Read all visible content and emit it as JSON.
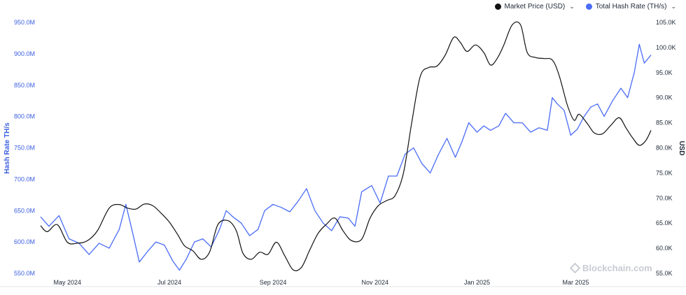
{
  "legend": {
    "price_label": "Market Price (USD)",
    "hash_label": "Total Hash Rate (TH/s)"
  },
  "watermark": "Blockchain.com",
  "colors": {
    "hash": "#4a6cf7",
    "price": "#111111",
    "grid": "#eceef2"
  },
  "chart_data": {
    "type": "line",
    "xlabel": "",
    "ylabel_left": "Hash Rate TH/s",
    "ylabel_right": "USD",
    "x_range": [
      "2024-04-15",
      "2025-04-15"
    ],
    "x_ticks": [
      {
        "date": "2024-05-01",
        "label": "May 2024"
      },
      {
        "date": "2024-07-01",
        "label": "Jul 2024"
      },
      {
        "date": "2024-09-01",
        "label": "Sep 2024"
      },
      {
        "date": "2024-11-01",
        "label": "Nov 2024"
      },
      {
        "date": "2025-01-01",
        "label": "Jan 2025"
      },
      {
        "date": "2025-03-01",
        "label": "Mar 2025"
      }
    ],
    "ylim_left": [
      550000000,
      950000000
    ],
    "yticks_left": [
      "550.0M",
      "600.0M",
      "650.0M",
      "700.0M",
      "750.0M",
      "800.0M",
      "850.0M",
      "900.0M",
      "950.0M"
    ],
    "ylim_right": [
      55000,
      105000
    ],
    "yticks_right": [
      "55.0K",
      "60.0K",
      "65.0K",
      "70.0K",
      "75.0K",
      "80.0K",
      "85.0K",
      "90.0K",
      "95.0K",
      "100.0K",
      "105.0K"
    ],
    "series": [
      {
        "name": "Total Hash Rate (TH/s)",
        "axis": "left",
        "color": "#4a6cf7",
        "points": [
          [
            "2024-04-15",
            640000000
          ],
          [
            "2024-04-20",
            625000000
          ],
          [
            "2024-04-26",
            642000000
          ],
          [
            "2024-05-02",
            605000000
          ],
          [
            "2024-05-08",
            598000000
          ],
          [
            "2024-05-14",
            580000000
          ],
          [
            "2024-05-20",
            598000000
          ],
          [
            "2024-05-26",
            590000000
          ],
          [
            "2024-06-01",
            620000000
          ],
          [
            "2024-06-05",
            660000000
          ],
          [
            "2024-06-09",
            615000000
          ],
          [
            "2024-06-13",
            568000000
          ],
          [
            "2024-06-18",
            585000000
          ],
          [
            "2024-06-23",
            600000000
          ],
          [
            "2024-06-28",
            595000000
          ],
          [
            "2024-07-03",
            570000000
          ],
          [
            "2024-07-07",
            555000000
          ],
          [
            "2024-07-11",
            572000000
          ],
          [
            "2024-07-16",
            600000000
          ],
          [
            "2024-07-21",
            605000000
          ],
          [
            "2024-07-26",
            592000000
          ],
          [
            "2024-07-31",
            620000000
          ],
          [
            "2024-08-04",
            650000000
          ],
          [
            "2024-08-08",
            640000000
          ],
          [
            "2024-08-13",
            630000000
          ],
          [
            "2024-08-18",
            610000000
          ],
          [
            "2024-08-23",
            620000000
          ],
          [
            "2024-08-27",
            650000000
          ],
          [
            "2024-09-01",
            660000000
          ],
          [
            "2024-09-06",
            655000000
          ],
          [
            "2024-09-11",
            648000000
          ],
          [
            "2024-09-16",
            665000000
          ],
          [
            "2024-09-21",
            685000000
          ],
          [
            "2024-09-26",
            650000000
          ],
          [
            "2024-10-01",
            630000000
          ],
          [
            "2024-10-06",
            618000000
          ],
          [
            "2024-10-11",
            640000000
          ],
          [
            "2024-10-16",
            638000000
          ],
          [
            "2024-10-20",
            625000000
          ],
          [
            "2024-10-24",
            680000000
          ],
          [
            "2024-10-30",
            690000000
          ],
          [
            "2024-11-04",
            662000000
          ],
          [
            "2024-11-09",
            705000000
          ],
          [
            "2024-11-14",
            705000000
          ],
          [
            "2024-11-19",
            740000000
          ],
          [
            "2024-11-24",
            750000000
          ],
          [
            "2024-11-29",
            725000000
          ],
          [
            "2024-12-04",
            710000000
          ],
          [
            "2024-12-09",
            740000000
          ],
          [
            "2024-12-14",
            765000000
          ],
          [
            "2024-12-19",
            735000000
          ],
          [
            "2024-12-23",
            760000000
          ],
          [
            "2024-12-27",
            790000000
          ],
          [
            "2025-01-01",
            775000000
          ],
          [
            "2025-01-05",
            785000000
          ],
          [
            "2025-01-09",
            778000000
          ],
          [
            "2025-01-14",
            785000000
          ],
          [
            "2025-01-18",
            805000000
          ],
          [
            "2025-01-23",
            790000000
          ],
          [
            "2025-01-28",
            790000000
          ],
          [
            "2025-02-02",
            775000000
          ],
          [
            "2025-02-07",
            782000000
          ],
          [
            "2025-02-12",
            778000000
          ],
          [
            "2025-02-15",
            830000000
          ],
          [
            "2025-02-18",
            820000000
          ],
          [
            "2025-02-22",
            810000000
          ],
          [
            "2025-02-26",
            770000000
          ],
          [
            "2025-03-02",
            780000000
          ],
          [
            "2025-03-06",
            800000000
          ],
          [
            "2025-03-10",
            815000000
          ],
          [
            "2025-03-14",
            820000000
          ],
          [
            "2025-03-18",
            800000000
          ],
          [
            "2025-03-23",
            825000000
          ],
          [
            "2025-03-28",
            845000000
          ],
          [
            "2025-04-01",
            830000000
          ],
          [
            "2025-04-05",
            870000000
          ],
          [
            "2025-04-08",
            915000000
          ],
          [
            "2025-04-11",
            885000000
          ],
          [
            "2025-04-15",
            898000000
          ]
        ]
      },
      {
        "name": "Market Price (USD)",
        "axis": "right",
        "color": "#111111",
        "points": [
          [
            "2024-04-15",
            64500
          ],
          [
            "2024-04-19",
            63300
          ],
          [
            "2024-04-25",
            64700
          ],
          [
            "2024-05-01",
            61200
          ],
          [
            "2024-05-07",
            61000
          ],
          [
            "2024-05-13",
            61500
          ],
          [
            "2024-05-19",
            63500
          ],
          [
            "2024-05-26",
            68000
          ],
          [
            "2024-06-01",
            68700
          ],
          [
            "2024-06-06",
            68000
          ],
          [
            "2024-06-11",
            67800
          ],
          [
            "2024-06-16",
            68800
          ],
          [
            "2024-06-21",
            68500
          ],
          [
            "2024-06-26",
            67000
          ],
          [
            "2024-07-01",
            65200
          ],
          [
            "2024-07-06",
            62700
          ],
          [
            "2024-07-10",
            60500
          ],
          [
            "2024-07-15",
            59500
          ],
          [
            "2024-07-20",
            57800
          ],
          [
            "2024-07-25",
            59200
          ],
          [
            "2024-07-30",
            64700
          ],
          [
            "2024-08-05",
            65500
          ],
          [
            "2024-08-10",
            63500
          ],
          [
            "2024-08-14",
            59000
          ],
          [
            "2024-08-19",
            57800
          ],
          [
            "2024-08-24",
            59200
          ],
          [
            "2024-08-29",
            58800
          ],
          [
            "2024-09-03",
            61200
          ],
          [
            "2024-09-08",
            58500
          ],
          [
            "2024-09-13",
            55700
          ],
          [
            "2024-09-18",
            56200
          ],
          [
            "2024-09-23",
            59700
          ],
          [
            "2024-09-28",
            63000
          ],
          [
            "2024-10-03",
            64800
          ],
          [
            "2024-10-08",
            66000
          ],
          [
            "2024-10-13",
            63400
          ],
          [
            "2024-10-18",
            61500
          ],
          [
            "2024-10-24",
            61800
          ],
          [
            "2024-10-29",
            66000
          ],
          [
            "2024-11-03",
            68500
          ],
          [
            "2024-11-08",
            69500
          ],
          [
            "2024-11-13",
            70500
          ],
          [
            "2024-11-18",
            75000
          ],
          [
            "2024-11-23",
            85200
          ],
          [
            "2024-11-28",
            94200
          ],
          [
            "2024-12-03",
            96000
          ],
          [
            "2024-12-08",
            96300
          ],
          [
            "2024-12-13",
            98500
          ],
          [
            "2024-12-18",
            102000
          ],
          [
            "2024-12-22",
            101000
          ],
          [
            "2024-12-26",
            99200
          ],
          [
            "2024-12-31",
            100500
          ],
          [
            "2025-01-05",
            99000
          ],
          [
            "2025-01-09",
            96500
          ],
          [
            "2025-01-13",
            97800
          ],
          [
            "2025-01-17",
            100500
          ],
          [
            "2025-01-22",
            104500
          ],
          [
            "2025-01-27",
            104500
          ],
          [
            "2025-01-31",
            99000
          ],
          [
            "2025-02-05",
            98000
          ],
          [
            "2025-02-10",
            97800
          ],
          [
            "2025-02-15",
            97500
          ],
          [
            "2025-02-19",
            94500
          ],
          [
            "2025-02-24",
            88500
          ],
          [
            "2025-02-28",
            85500
          ],
          [
            "2025-03-03",
            86700
          ],
          [
            "2025-03-08",
            84800
          ],
          [
            "2025-03-12",
            83000
          ],
          [
            "2025-03-17",
            82800
          ],
          [
            "2025-03-22",
            84500
          ],
          [
            "2025-03-27",
            86000
          ],
          [
            "2025-03-31",
            84000
          ],
          [
            "2025-04-04",
            82000
          ],
          [
            "2025-04-08",
            80500
          ],
          [
            "2025-04-12",
            81500
          ],
          [
            "2025-04-15",
            83500
          ]
        ]
      }
    ]
  }
}
